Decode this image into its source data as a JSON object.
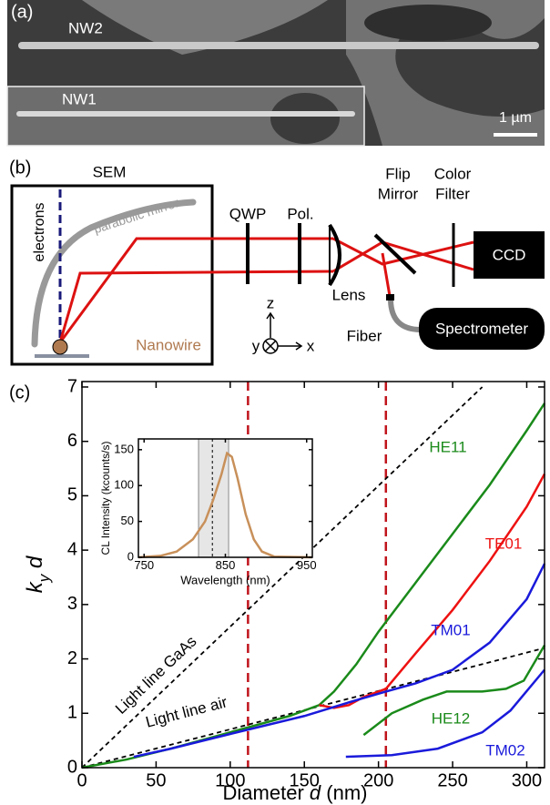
{
  "panel_a": {
    "label": "(a)",
    "nw2": "NW2",
    "nw1": "NW1",
    "scale_bar": "1 µm"
  },
  "panel_b": {
    "label": "(b)",
    "sem": "SEM",
    "electrons": "electrons",
    "mirror": "parabolic mirror",
    "nanowire": "Nanowire",
    "qwp": "QWP",
    "pol": "Pol.",
    "lens": "Lens",
    "flip": [
      "Flip",
      "Mirror"
    ],
    "filter": [
      "Color",
      "Filter"
    ],
    "ccd": "CCD",
    "fiber": "Fiber",
    "spectrometer": "Spectrometer",
    "axes": [
      "z",
      "y",
      "x"
    ]
  },
  "chart_data": [
    {
      "type": "line",
      "panel_label": "(c)",
      "xlabel": [
        "Diameter ",
        "d",
        " (nm)"
      ],
      "ylabel": [
        "k",
        "y",
        " d"
      ],
      "xlim": [
        0,
        312
      ],
      "ylim": [
        0,
        7.1
      ],
      "xticks": [
        0,
        50,
        100,
        150,
        200,
        250,
        300
      ],
      "yticks": [
        0,
        1,
        2,
        3,
        4,
        5,
        6,
        7
      ],
      "vlines": [
        112,
        205
      ],
      "vline_color": "#c0141c",
      "series": [
        {
          "name": "Light line GaAs",
          "color": "#000000",
          "dashed": true,
          "x": [
            0,
            270
          ],
          "values": [
            0,
            7
          ]
        },
        {
          "name": "Light line air",
          "color": "#000000",
          "dashed": true,
          "x": [
            0,
            312
          ],
          "values": [
            0,
            2.2
          ]
        },
        {
          "name": "HE11",
          "color": "#1a8a1a",
          "x": [
            0,
            30,
            60,
            100,
            140,
            160,
            170,
            185,
            200,
            225,
            250,
            275,
            300,
            312
          ],
          "values": [
            0,
            0.15,
            0.35,
            0.65,
            0.95,
            1.15,
            1.4,
            1.9,
            2.5,
            3.4,
            4.3,
            5.2,
            6.2,
            6.7
          ]
        },
        {
          "name": "TE01",
          "color": "#ee1111",
          "x": [
            160,
            170,
            180,
            190,
            205,
            225,
            250,
            275,
            300,
            312
          ],
          "values": [
            1.15,
            1.1,
            1.15,
            1.3,
            1.45,
            2.1,
            2.9,
            3.8,
            4.8,
            5.4
          ]
        },
        {
          "name": "TM01",
          "color": "#1a1adb",
          "x": [
            35,
            60,
            100,
            150,
            180,
            205,
            225,
            250,
            275,
            300,
            312
          ],
          "values": [
            0.2,
            0.35,
            0.62,
            0.95,
            1.2,
            1.4,
            1.55,
            1.8,
            2.3,
            3.1,
            3.75
          ]
        },
        {
          "name": "HE12",
          "color": "#1a8a1a",
          "x": [
            190,
            209,
            230,
            246,
            270,
            286,
            298,
            312
          ],
          "values": [
            0.6,
            1.0,
            1.25,
            1.4,
            1.4,
            1.45,
            1.6,
            2.25
          ]
        },
        {
          "name": "TM02",
          "color": "#1a1adb",
          "x": [
            178,
            209,
            240,
            270,
            289,
            312
          ],
          "values": [
            0.2,
            0.23,
            0.35,
            0.65,
            1.05,
            1.8
          ]
        }
      ]
    },
    {
      "type": "line",
      "xlabel": "Wavelength (nm)",
      "ylabel": "CL Intensity (kcounts/s)",
      "xlim": [
        743,
        957
      ],
      "ylim": [
        0,
        165
      ],
      "xticks": [
        750,
        850,
        950
      ],
      "yticks": [
        0,
        50,
        100,
        150
      ],
      "shaded_band": [
        817,
        854
      ],
      "center_line": 834,
      "series": [
        {
          "color": "#c8905a",
          "x": [
            743,
            770,
            790,
            810,
            825,
            835,
            845,
            852,
            858,
            865,
            875,
            885,
            895,
            910,
            957
          ],
          "values": [
            0,
            2,
            8,
            25,
            50,
            80,
            115,
            145,
            140,
            110,
            60,
            25,
            8,
            1,
            0
          ]
        }
      ]
    }
  ]
}
